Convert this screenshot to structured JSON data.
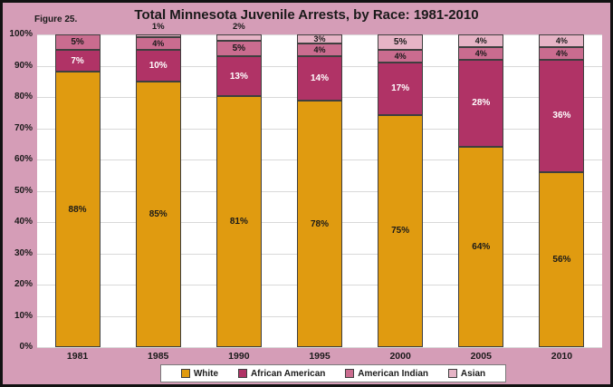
{
  "figure_label": "Figure 25.",
  "chart_data": {
    "type": "bar",
    "stacked": true,
    "title": "Total Minnesota Juvenile Arrests, by Race: 1981-2010",
    "categories": [
      "1981",
      "1985",
      "1990",
      "1995",
      "2000",
      "2005",
      "2010"
    ],
    "series": [
      {
        "name": "White",
        "color": "#e09b10",
        "label_color": "#1a1a1a",
        "values": [
          88,
          85,
          81,
          78,
          75,
          64,
          56
        ]
      },
      {
        "name": "African American",
        "color": "#b03366",
        "label_color": "#ffffff",
        "values": [
          7,
          10,
          13,
          14,
          17,
          28,
          36
        ]
      },
      {
        "name": "American Indian",
        "color": "#ca6c8f",
        "label_color": "#1a1a1a",
        "values": [
          5,
          4,
          5,
          4,
          4,
          4,
          4
        ]
      },
      {
        "name": "Asian",
        "color": "#e6b4c6",
        "label_color": "#1a1a1a",
        "values": [
          null,
          1,
          2,
          3,
          5,
          4,
          4
        ]
      }
    ],
    "value_suffix": "%",
    "y_axis": {
      "min": 0,
      "max": 100,
      "grid": true,
      "ticks": [
        "100%",
        "90%",
        "80%",
        "70%",
        "60%",
        "50%",
        "40%",
        "30%",
        "20%",
        "10%",
        "0%"
      ]
    },
    "legend": {
      "position": "bottom"
    }
  },
  "colors": {
    "background": "#d59db7",
    "plot_background": "#ffffff",
    "gridline": "#d9d9d9",
    "segment_outline": "#3f3f3f",
    "outer_border": "#121212",
    "legend_border": "#7a7a7a",
    "text": "#1a1a1a"
  }
}
